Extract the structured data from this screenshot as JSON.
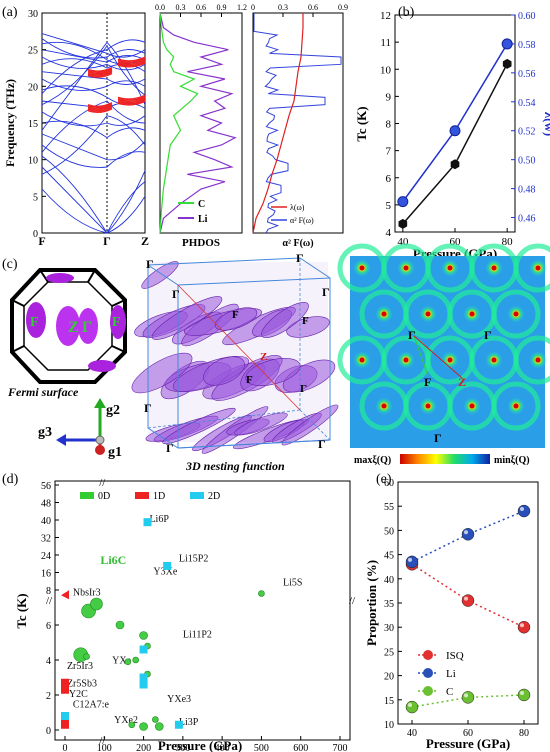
{
  "panel_labels": [
    "(a)",
    "(b)",
    "(c)",
    "(d)",
    "(e)"
  ],
  "panel_a": {
    "phonon": {
      "ylabel": "Frequency (THz)",
      "yticks": [
        "0",
        "5",
        "10",
        "15",
        "20",
        "25",
        "30"
      ],
      "xticks": [
        "F",
        "Γ",
        "Z"
      ]
    },
    "phdos": {
      "xlabel": "PHDOS",
      "xticks": [
        "0.0",
        "0.3",
        "0.6",
        "0.9",
        "1.2"
      ],
      "legend": [
        "C",
        "Li"
      ],
      "colors": {
        "C": "#33dd33",
        "Li": "#8833cc"
      }
    },
    "eliashberg": {
      "xlabel": "α² F(ω)",
      "xticks": [
        "0",
        "0.3",
        "0.6",
        "0.9"
      ],
      "legend": [
        "λ(ω)",
        "α² F(ω)"
      ],
      "colors": {
        "lambda": "#e02020",
        "a2f": "#3344dd"
      }
    }
  },
  "chart_data": [
    {
      "type": "line",
      "panel": "(b)",
      "xlabel": "Pressure (GPa)",
      "ylabel": "Tc (K)",
      "y2label": "λ(w)",
      "xticks": [
        "40",
        "60",
        "80"
      ],
      "yticks": [
        "4",
        "5",
        "6",
        "7",
        "8",
        "9",
        "10",
        "11",
        "12"
      ],
      "y2ticks": [
        "0.46",
        "0.48",
        "0.50",
        "0.52",
        "0.54",
        "0.56",
        "0.58",
        "0.60"
      ],
      "xlim": [
        37,
        83
      ],
      "ylim": [
        4,
        12
      ],
      "y2lim": [
        0.45,
        0.6
      ],
      "series": [
        {
          "axis": "left",
          "color": "#111111",
          "x": [
            40,
            60,
            80
          ],
          "values": [
            4.3,
            6.5,
            10.2
          ]
        },
        {
          "axis": "right",
          "color": "#2233cc",
          "x": [
            40,
            60,
            80
          ],
          "values": [
            0.471,
            0.52,
            0.58
          ]
        }
      ]
    },
    {
      "type": "scatter",
      "panel": "(d)",
      "xlabel": "Pressure (GPa)",
      "ylabel": "Tc (K)",
      "xticks": [
        "0",
        "100",
        "200",
        "300",
        "400",
        "500",
        "600",
        "700"
      ],
      "yticks_low": [
        "0",
        "2",
        "4",
        "6",
        "8"
      ],
      "yticks_high": [
        "16",
        "24",
        "32",
        "40",
        "48",
        "56"
      ],
      "legend": [
        "0D",
        "1D",
        "2D"
      ],
      "legend_colors": [
        "#33cc33",
        "#ee2222",
        "#22ccee"
      ],
      "labels": [
        {
          "text": "Li6P",
          "x": 215,
          "y": 39
        },
        {
          "text": "Li15P2",
          "x": 290,
          "y": 21
        },
        {
          "text": "Y3Xe",
          "x": 225,
          "y": 15
        },
        {
          "text": "Li6C",
          "x": 90,
          "y": 20
        },
        {
          "text": "Li5S",
          "x": 555,
          "y": 10
        },
        {
          "text": "NbsIr3",
          "x": 20,
          "y": 7.7
        },
        {
          "text": "Li11P2",
          "x": 300,
          "y": 5.3
        },
        {
          "text": "YXe",
          "x": 120,
          "y": 3.8
        },
        {
          "text": "Zr5Ir3",
          "x": 5,
          "y": 3.5
        },
        {
          "text": "Zr5Sb3",
          "x": 5,
          "y": 2.5
        },
        {
          "text": "Y2C",
          "x": 10,
          "y": 1.9
        },
        {
          "text": "C12A7:e",
          "x": 20,
          "y": 1.3
        },
        {
          "text": "YXe3",
          "x": 260,
          "y": 1.6
        },
        {
          "text": "YXe2",
          "x": 125,
          "y": 0.4
        },
        {
          "text": "Li3P",
          "x": 290,
          "y": 0.3
        }
      ]
    },
    {
      "type": "line",
      "panel": "(e)",
      "xlabel": "Pressure (GPa)",
      "ylabel": "Proportion (%)",
      "xticks": [
        "40",
        "60",
        "80"
      ],
      "yticks": [
        "10",
        "15",
        "20",
        "25",
        "30",
        "35",
        "40",
        "45",
        "50",
        "55",
        "60"
      ],
      "xlim": [
        35,
        85
      ],
      "ylim": [
        10,
        60
      ],
      "legend": [
        "ISQ",
        "Li",
        "C"
      ],
      "series": [
        {
          "name": "ISQ",
          "color": "#e03030",
          "x": [
            40,
            60,
            80
          ],
          "values": [
            43,
            35.5,
            30
          ]
        },
        {
          "name": "Li",
          "color": "#2a4fb8",
          "x": [
            40,
            60,
            80
          ],
          "values": [
            43.5,
            49.2,
            54
          ]
        },
        {
          "name": "C",
          "color": "#6ac030",
          "x": [
            40,
            60,
            80
          ],
          "values": [
            13.5,
            15.5,
            16
          ]
        }
      ]
    }
  ],
  "panel_c": {
    "fermi_label": "Fermi surface",
    "nesting_label": "3D nesting function",
    "axes": [
      "g1",
      "g2",
      "g3"
    ],
    "points": [
      "Γ",
      "F",
      "Z"
    ],
    "colorbar_left": "maxξ(Q)",
    "colorbar_right": "minξ(Q)"
  }
}
